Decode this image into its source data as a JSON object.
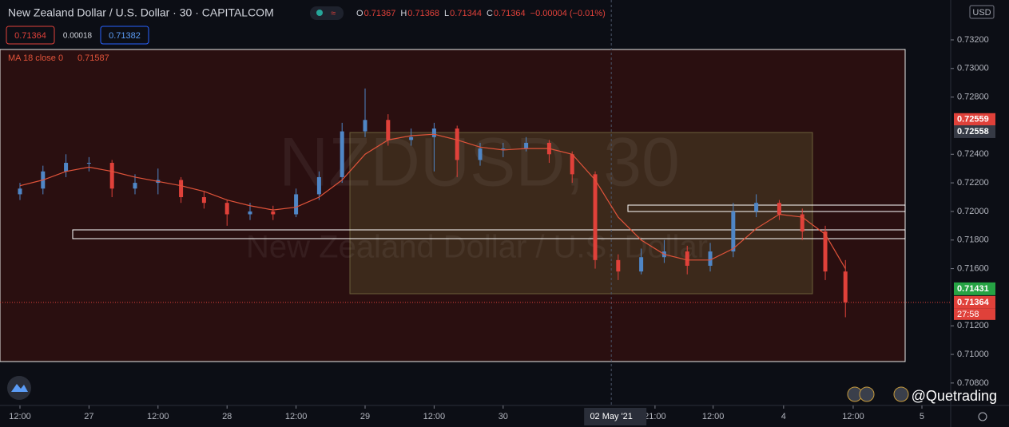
{
  "header": {
    "symbol": "New Zealand Dollar / U.S. Dollar · 30 · CAPITALCOM",
    "ohlc": [
      {
        "key": "O",
        "value": 0.71367
      },
      {
        "key": "H",
        "value": 0.71368
      },
      {
        "key": "L",
        "value": 0.71344
      },
      {
        "key": "C",
        "value": 0.71364
      }
    ],
    "change": "−0.00004 (−0.01%)",
    "bid": 0.71364,
    "spread": 0.00018,
    "ask": 0.71382
  },
  "watermark": {
    "symbol": "NZDUSD, 30",
    "description": "New Zealand Dollar / U.S. Dollar"
  },
  "brand": "@Quetrading",
  "chart_data": {
    "type": "candlestick",
    "currency": "USD",
    "x": [
      0,
      8,
      16,
      24,
      32,
      40,
      48,
      56,
      64,
      72,
      80,
      88,
      96,
      104,
      112,
      120,
      128,
      136,
      144,
      152,
      160,
      168,
      176,
      184,
      192,
      200,
      208,
      216,
      224,
      232,
      240,
      248,
      256,
      264,
      272,
      280,
      287
    ],
    "open": [
      0.7212,
      0.7216,
      0.7228,
      0.7234,
      0.7234,
      0.7216,
      0.722,
      0.7222,
      0.721,
      0.7206,
      0.7198,
      0.72,
      0.7198,
      0.7212,
      0.7224,
      0.7256,
      0.7264,
      0.725,
      0.7252,
      0.7258,
      0.7236,
      0.7244,
      0.7244,
      0.7248,
      0.724,
      0.7226,
      0.7166,
      0.7158,
      0.7168,
      0.7172,
      0.7162,
      0.7172,
      0.72,
      0.7206,
      0.7198,
      0.7186,
      0.7158
    ],
    "high": [
      0.722,
      0.7232,
      0.724,
      0.7238,
      0.7236,
      0.7226,
      0.723,
      0.7224,
      0.7214,
      0.7208,
      0.7206,
      0.7204,
      0.7216,
      0.7228,
      0.7262,
      0.7286,
      0.7268,
      0.7258,
      0.7262,
      0.726,
      0.7248,
      0.7248,
      0.7252,
      0.725,
      0.7242,
      0.7228,
      0.717,
      0.7174,
      0.718,
      0.7176,
      0.7178,
      0.7206,
      0.7212,
      0.7208,
      0.7202,
      0.719,
      0.7166
    ],
    "low": [
      0.7208,
      0.7212,
      0.7224,
      0.7228,
      0.721,
      0.7212,
      0.7212,
      0.7206,
      0.7202,
      0.719,
      0.7194,
      0.7194,
      0.7196,
      0.7208,
      0.722,
      0.7252,
      0.7246,
      0.7246,
      0.7228,
      0.7224,
      0.7232,
      0.7238,
      0.7242,
      0.7234,
      0.722,
      0.716,
      0.7152,
      0.7156,
      0.7164,
      0.7156,
      0.7158,
      0.7168,
      0.7196,
      0.7194,
      0.718,
      0.7152,
      0.7126
    ],
    "close": [
      0.7216,
      0.7228,
      0.7234,
      0.7234,
      0.7216,
      0.722,
      0.7222,
      0.721,
      0.7206,
      0.7198,
      0.72,
      0.7198,
      0.7212,
      0.7224,
      0.7256,
      0.7264,
      0.725,
      0.7252,
      0.7258,
      0.7236,
      0.7244,
      0.7244,
      0.7248,
      0.724,
      0.7226,
      0.7166,
      0.7158,
      0.7168,
      0.7172,
      0.7162,
      0.7172,
      0.72,
      0.7206,
      0.7198,
      0.7186,
      0.7158,
      0.71364
    ],
    "up_color": "#4f86c6",
    "down_color": "#e0413a",
    "ma": {
      "name": "MA 18 close 0",
      "last": 0.71587,
      "color": "#e0533a",
      "values": [
        0.7218,
        0.7222,
        0.7228,
        0.7231,
        0.7228,
        0.7224,
        0.7221,
        0.7218,
        0.7214,
        0.7208,
        0.7204,
        0.7201,
        0.7203,
        0.721,
        0.7222,
        0.724,
        0.725,
        0.7253,
        0.7254,
        0.725,
        0.7245,
        0.7243,
        0.7244,
        0.7244,
        0.724,
        0.7222,
        0.7196,
        0.718,
        0.717,
        0.7166,
        0.7166,
        0.7174,
        0.7188,
        0.7198,
        0.7196,
        0.7184,
        0.716
      ]
    },
    "xlim": [
      -6.94,
      323.6
    ],
    "xticks": [
      {
        "value": 0,
        "label": "12:00"
      },
      {
        "value": 24,
        "label": "27"
      },
      {
        "value": 48,
        "label": "12:00"
      },
      {
        "value": 72,
        "label": "28"
      },
      {
        "value": 96,
        "label": "12:00"
      },
      {
        "value": 120,
        "label": "29"
      },
      {
        "value": 144,
        "label": "12:00"
      },
      {
        "value": 168,
        "label": "30"
      },
      {
        "value": 220.8,
        "label": "21:00"
      },
      {
        "value": 241,
        "label": "12:00"
      },
      {
        "value": 265.5,
        "label": "4"
      },
      {
        "value": 289.7,
        "label": "12:00"
      },
      {
        "value": 313.6,
        "label": "5"
      }
    ],
    "crosshair": {
      "value": 205.6,
      "label": "02 May '21"
    },
    "ylim": [
      0.70643,
      0.73479
    ],
    "yticks": [
      {
        "value": 0.708,
        "label": "0.70800"
      },
      {
        "value": 0.71,
        "label": "0.71000"
      },
      {
        "value": 0.712,
        "label": "0.71200"
      },
      {
        "value": 0.716,
        "label": "0.71600"
      },
      {
        "value": 0.718,
        "label": "0.71800"
      },
      {
        "value": 0.72,
        "label": "0.72000"
      },
      {
        "value": 0.722,
        "label": "0.72200"
      },
      {
        "value": 0.724,
        "label": "0.72400"
      },
      {
        "value": 0.728,
        "label": "0.72800"
      },
      {
        "value": 0.73,
        "label": "0.73000"
      },
      {
        "value": 0.732,
        "label": "0.73200"
      }
    ],
    "price_labels": [
      {
        "value": 0.72559,
        "color": "#e0413a"
      },
      {
        "value": 0.72558,
        "color": "#363a45"
      },
      {
        "value": 0.71431,
        "color": "#26a344"
      },
      {
        "value": 0.71364,
        "color": "#e0413a"
      }
    ],
    "countdown": "27:58"
  }
}
